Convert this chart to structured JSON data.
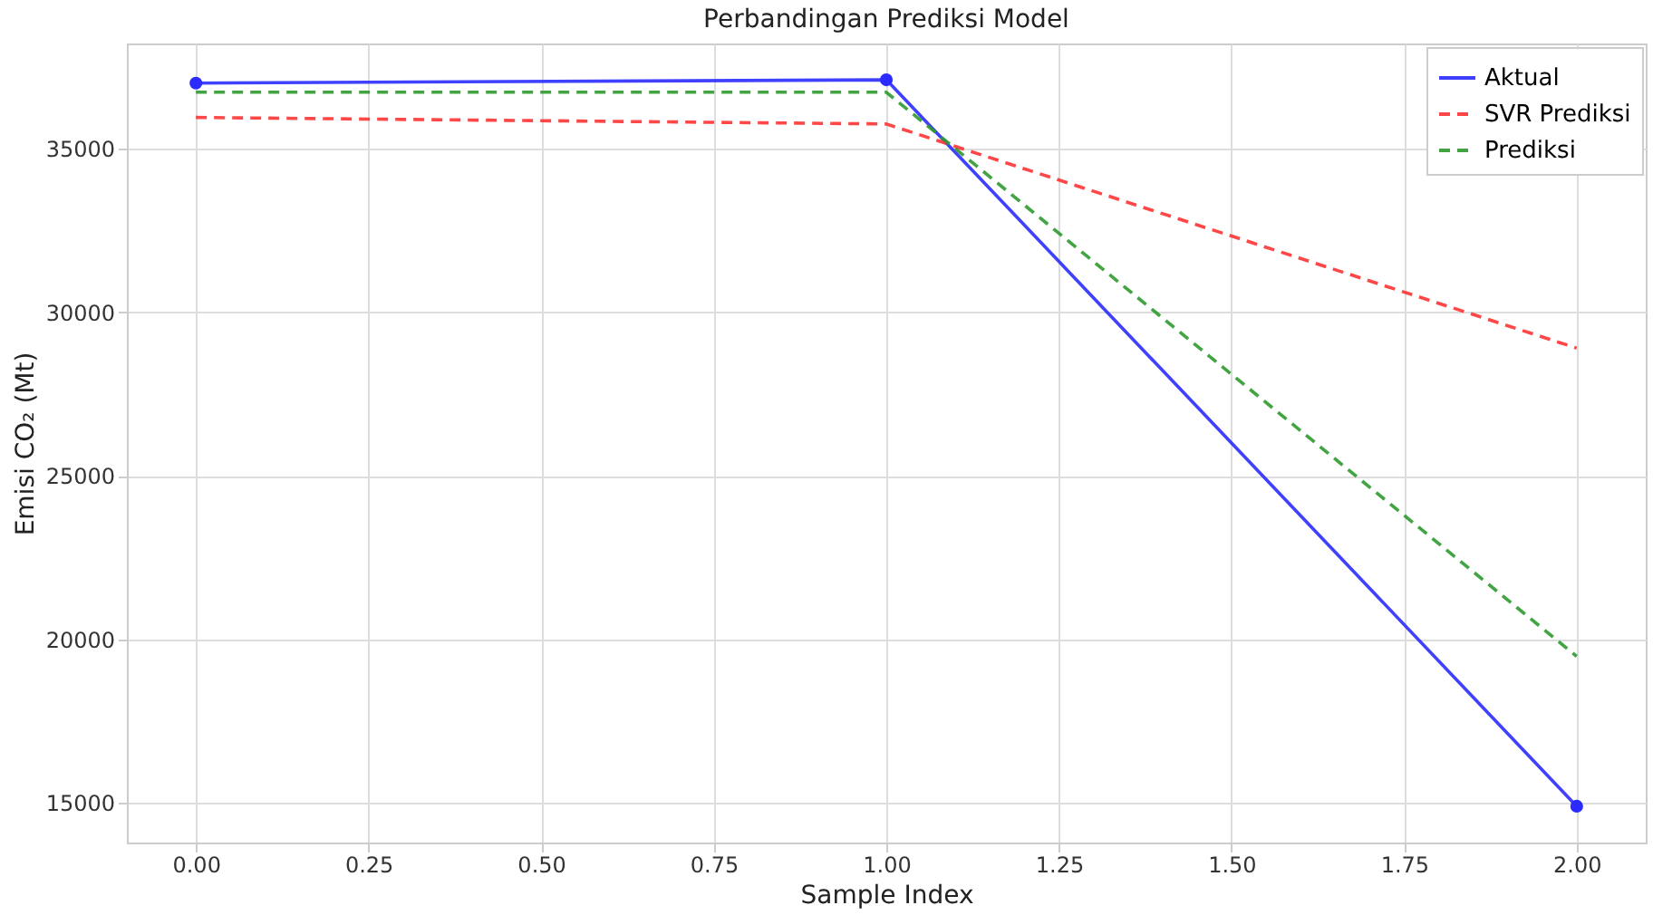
{
  "chart_data": {
    "type": "line",
    "title": "Perbandingan Prediksi Model",
    "xlabel": "Sample Index",
    "ylabel": "Emisi CO₂ (Mt)",
    "x": [
      0,
      1,
      2
    ],
    "series": [
      {
        "name": "Aktual",
        "color": "#2b2bff",
        "values": [
          37000,
          37100,
          14900
        ],
        "marker": "circle",
        "line_style": "solid"
      },
      {
        "name": "SVR Prediksi",
        "color": "#ff3333",
        "values": [
          35950,
          35750,
          28900
        ],
        "marker": "none",
        "line_style": "dashed"
      },
      {
        "name": "Prediksi",
        "color": "#2e9a2e",
        "values": [
          36720,
          36720,
          19480
        ],
        "marker": "none",
        "line_style": "dashed"
      }
    ],
    "xlim": [
      -0.1,
      2.1
    ],
    "xticks": [
      {
        "value": 0,
        "label": "0.00"
      },
      {
        "value": 0.25,
        "label": "0.25"
      },
      {
        "value": 0.5,
        "label": "0.50"
      },
      {
        "value": 0.75,
        "label": "0.75"
      },
      {
        "value": 1,
        "label": "1.00"
      },
      {
        "value": 1.25,
        "label": "1.25"
      },
      {
        "value": 1.5,
        "label": "1.50"
      },
      {
        "value": 1.75,
        "label": "1.75"
      },
      {
        "value": 2,
        "label": "2.00"
      }
    ],
    "ylim": [
      13790,
      38210
    ],
    "yticks": [
      15000,
      20000,
      25000,
      30000,
      35000
    ],
    "grid": true,
    "legend": "top right"
  }
}
